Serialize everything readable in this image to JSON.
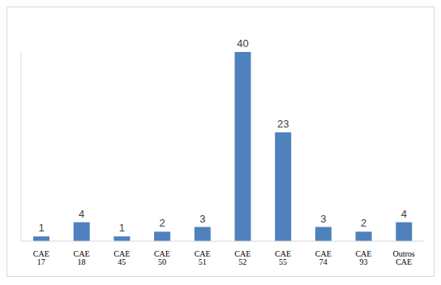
{
  "chart_data": {
    "type": "bar",
    "categories": [
      "CAE 17",
      "CAE 18",
      "CAE 45",
      "CAE 50",
      "CAE 51",
      "CAE 52",
      "CAE 55",
      "CAE 74",
      "CAE 93",
      "Outros CAE"
    ],
    "values": [
      1,
      4,
      1,
      2,
      3,
      40,
      23,
      3,
      2,
      4
    ],
    "color": "#4f81bd",
    "ylim": [
      0,
      40
    ],
    "grid": false,
    "data_labels": true,
    "tick_labels": "x"
  }
}
